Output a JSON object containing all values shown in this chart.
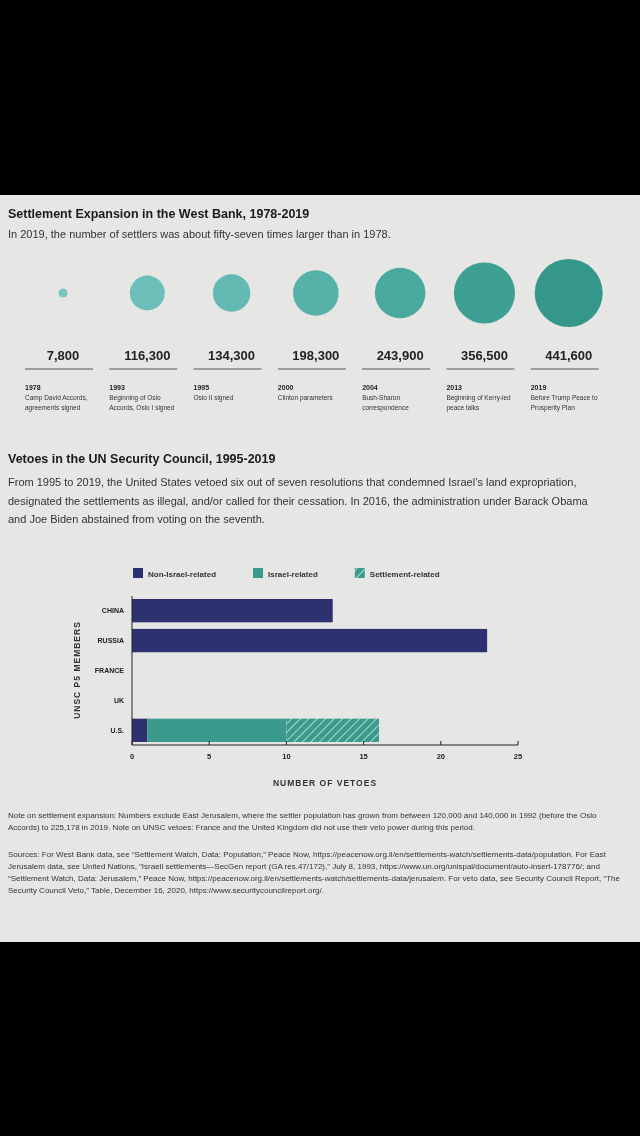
{
  "chart_data": [
    {
      "type": "other",
      "title": "Settlement Expansion in the West Bank, 1978-2019",
      "subtitle": "In 2019, the number of settlers was about fifty-seven times larger than in 1978.",
      "categories": [
        "1978",
        "1993",
        "1995",
        "2000",
        "2004",
        "2013",
        "2019"
      ],
      "values": [
        7800,
        116300,
        134300,
        198300,
        243900,
        356500,
        441600
      ],
      "value_labels": [
        "7,800",
        "116,300",
        "134,300",
        "198,300",
        "243,900",
        "356,500",
        "441,600"
      ],
      "colors": [
        "#7cc6bf",
        "#6cbfb8",
        "#64bab3",
        "#56b2a9",
        "#4aa99f",
        "#3ea093",
        "#35978a"
      ],
      "annotations": [
        "Camp David Accords, agreements signed",
        "Beginning of Oslo Accords, Oslo I signed",
        "Oslo II signed",
        "Clinton parameters",
        "Bush-Sharon correspondence",
        "Beginning of Kerry-led peace talks",
        "Before Trump Peace to Prosperity Plan"
      ]
    },
    {
      "type": "bar",
      "orientation": "horizontal",
      "stacked": true,
      "title": "Vetoes in the UN Security Council, 1995-2019",
      "subtitle": "From 1995 to 2019, the United States vetoed six out of seven resolutions that condemned Israel’s land expropriation, designated the settlements as illegal, and/or called for their cessation. In 2016, the administration under Barack Obama and Joe Biden abstained from voting on the seventh.",
      "categories": [
        "CHINA",
        "RUSSIA",
        "FRANCE",
        "UK",
        "U.S."
      ],
      "series": [
        {
          "name": "Non-Israel-related",
          "color": "#2e3170",
          "values": [
            13,
            23,
            0,
            0,
            1
          ]
        },
        {
          "name": "Israel-related",
          "color": "#3a9a8c",
          "values": [
            0,
            0,
            0,
            0,
            9
          ]
        },
        {
          "name": "Settlement-related",
          "color": "#3a9a8c",
          "values": [
            0,
            0,
            0,
            0,
            6
          ]
        }
      ],
      "xlim": [
        0,
        25
      ],
      "xticks": [
        0,
        5,
        10,
        15,
        20,
        25
      ],
      "xlabel": "NUMBER OF VETOES",
      "ylabel": "UNSC P5 MEMBERS",
      "legend": "top",
      "annotations": [
        "Note on settlement expansion: Numbers exclude East Jerusalem, where the settler population has grown from between 120,000 and 140,000 in 1992 (before the Oslo Accords) to 225,178 in 2019. Note on UNSC vetoes: France and the United Kingdom did not use their veto power during this period.",
        "Sources: For West Bank data, see “Settlement Watch, Data: Population,” Peace Now, https://peacenow.org.il/en/settlements-watch/settlements-data/population. For East Jerusalem data, see United Nations, “Israeli settlements—SecGen report (GA res.47/172),” July 8, 1993, https://www.un.org/unispal/document/auto-insert-178776/; and “Settlement Watch, Data: Jerusalem,” Peace Now, https://peacenow.org.il/en/settlements-watch/settlements-data/jerusalem. For veto data, see Security Council Report, “The Security Council Veto,” Table, December 16, 2020, https://www.securitycouncilreport.org/."
      ]
    }
  ]
}
